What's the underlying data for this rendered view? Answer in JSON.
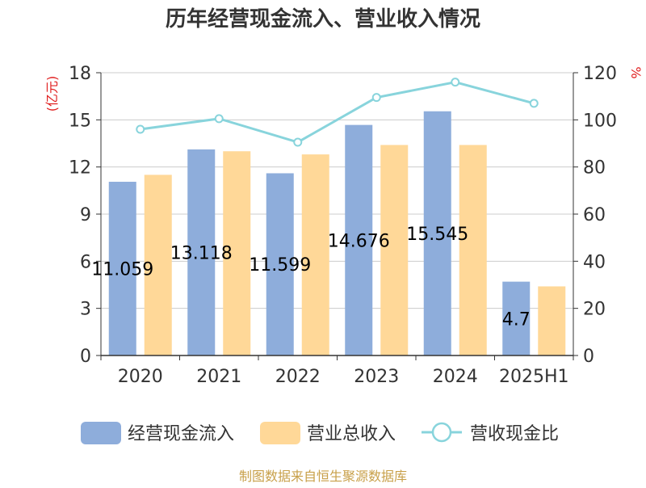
{
  "chart_data": {
    "type": "bar",
    "title": "历年经营现金流入、营业收入情况",
    "categories": [
      "2020",
      "2021",
      "2022",
      "2023",
      "2024",
      "2025H1"
    ],
    "series": [
      {
        "name": "经营现金流入",
        "type": "bar",
        "axis": "left",
        "color": "#8EADDB",
        "values": [
          11.059,
          13.118,
          11.599,
          14.676,
          15.545,
          4.7
        ],
        "labels": [
          "11.059",
          "13.118",
          "11.599",
          "14.676",
          "15.545",
          "4.7"
        ]
      },
      {
        "name": "营业总收入",
        "type": "bar",
        "axis": "left",
        "color": "#FFD898",
        "values": [
          11.5,
          13.0,
          12.8,
          13.4,
          13.4,
          4.4
        ]
      },
      {
        "name": "营收现金比",
        "type": "line",
        "axis": "right",
        "color": "#88D4DC",
        "values": [
          96,
          100.5,
          90.5,
          109.5,
          116,
          107
        ]
      }
    ],
    "y_left": {
      "unit": "(亿元)",
      "unit_color": "#E02020",
      "min": 0,
      "max": 18,
      "ticks": [
        "0",
        "3",
        "6",
        "9",
        "12",
        "15",
        "18"
      ]
    },
    "y_right": {
      "unit": "%",
      "unit_color": "#E02020",
      "min": 0,
      "max": 120,
      "ticks": [
        "0",
        "20",
        "40",
        "60",
        "80",
        "100",
        "120"
      ]
    },
    "grid": true,
    "legend_position": "bottom"
  },
  "source_text": "制图数据来自恒生聚源数据库",
  "source_color": "#C8A04A"
}
